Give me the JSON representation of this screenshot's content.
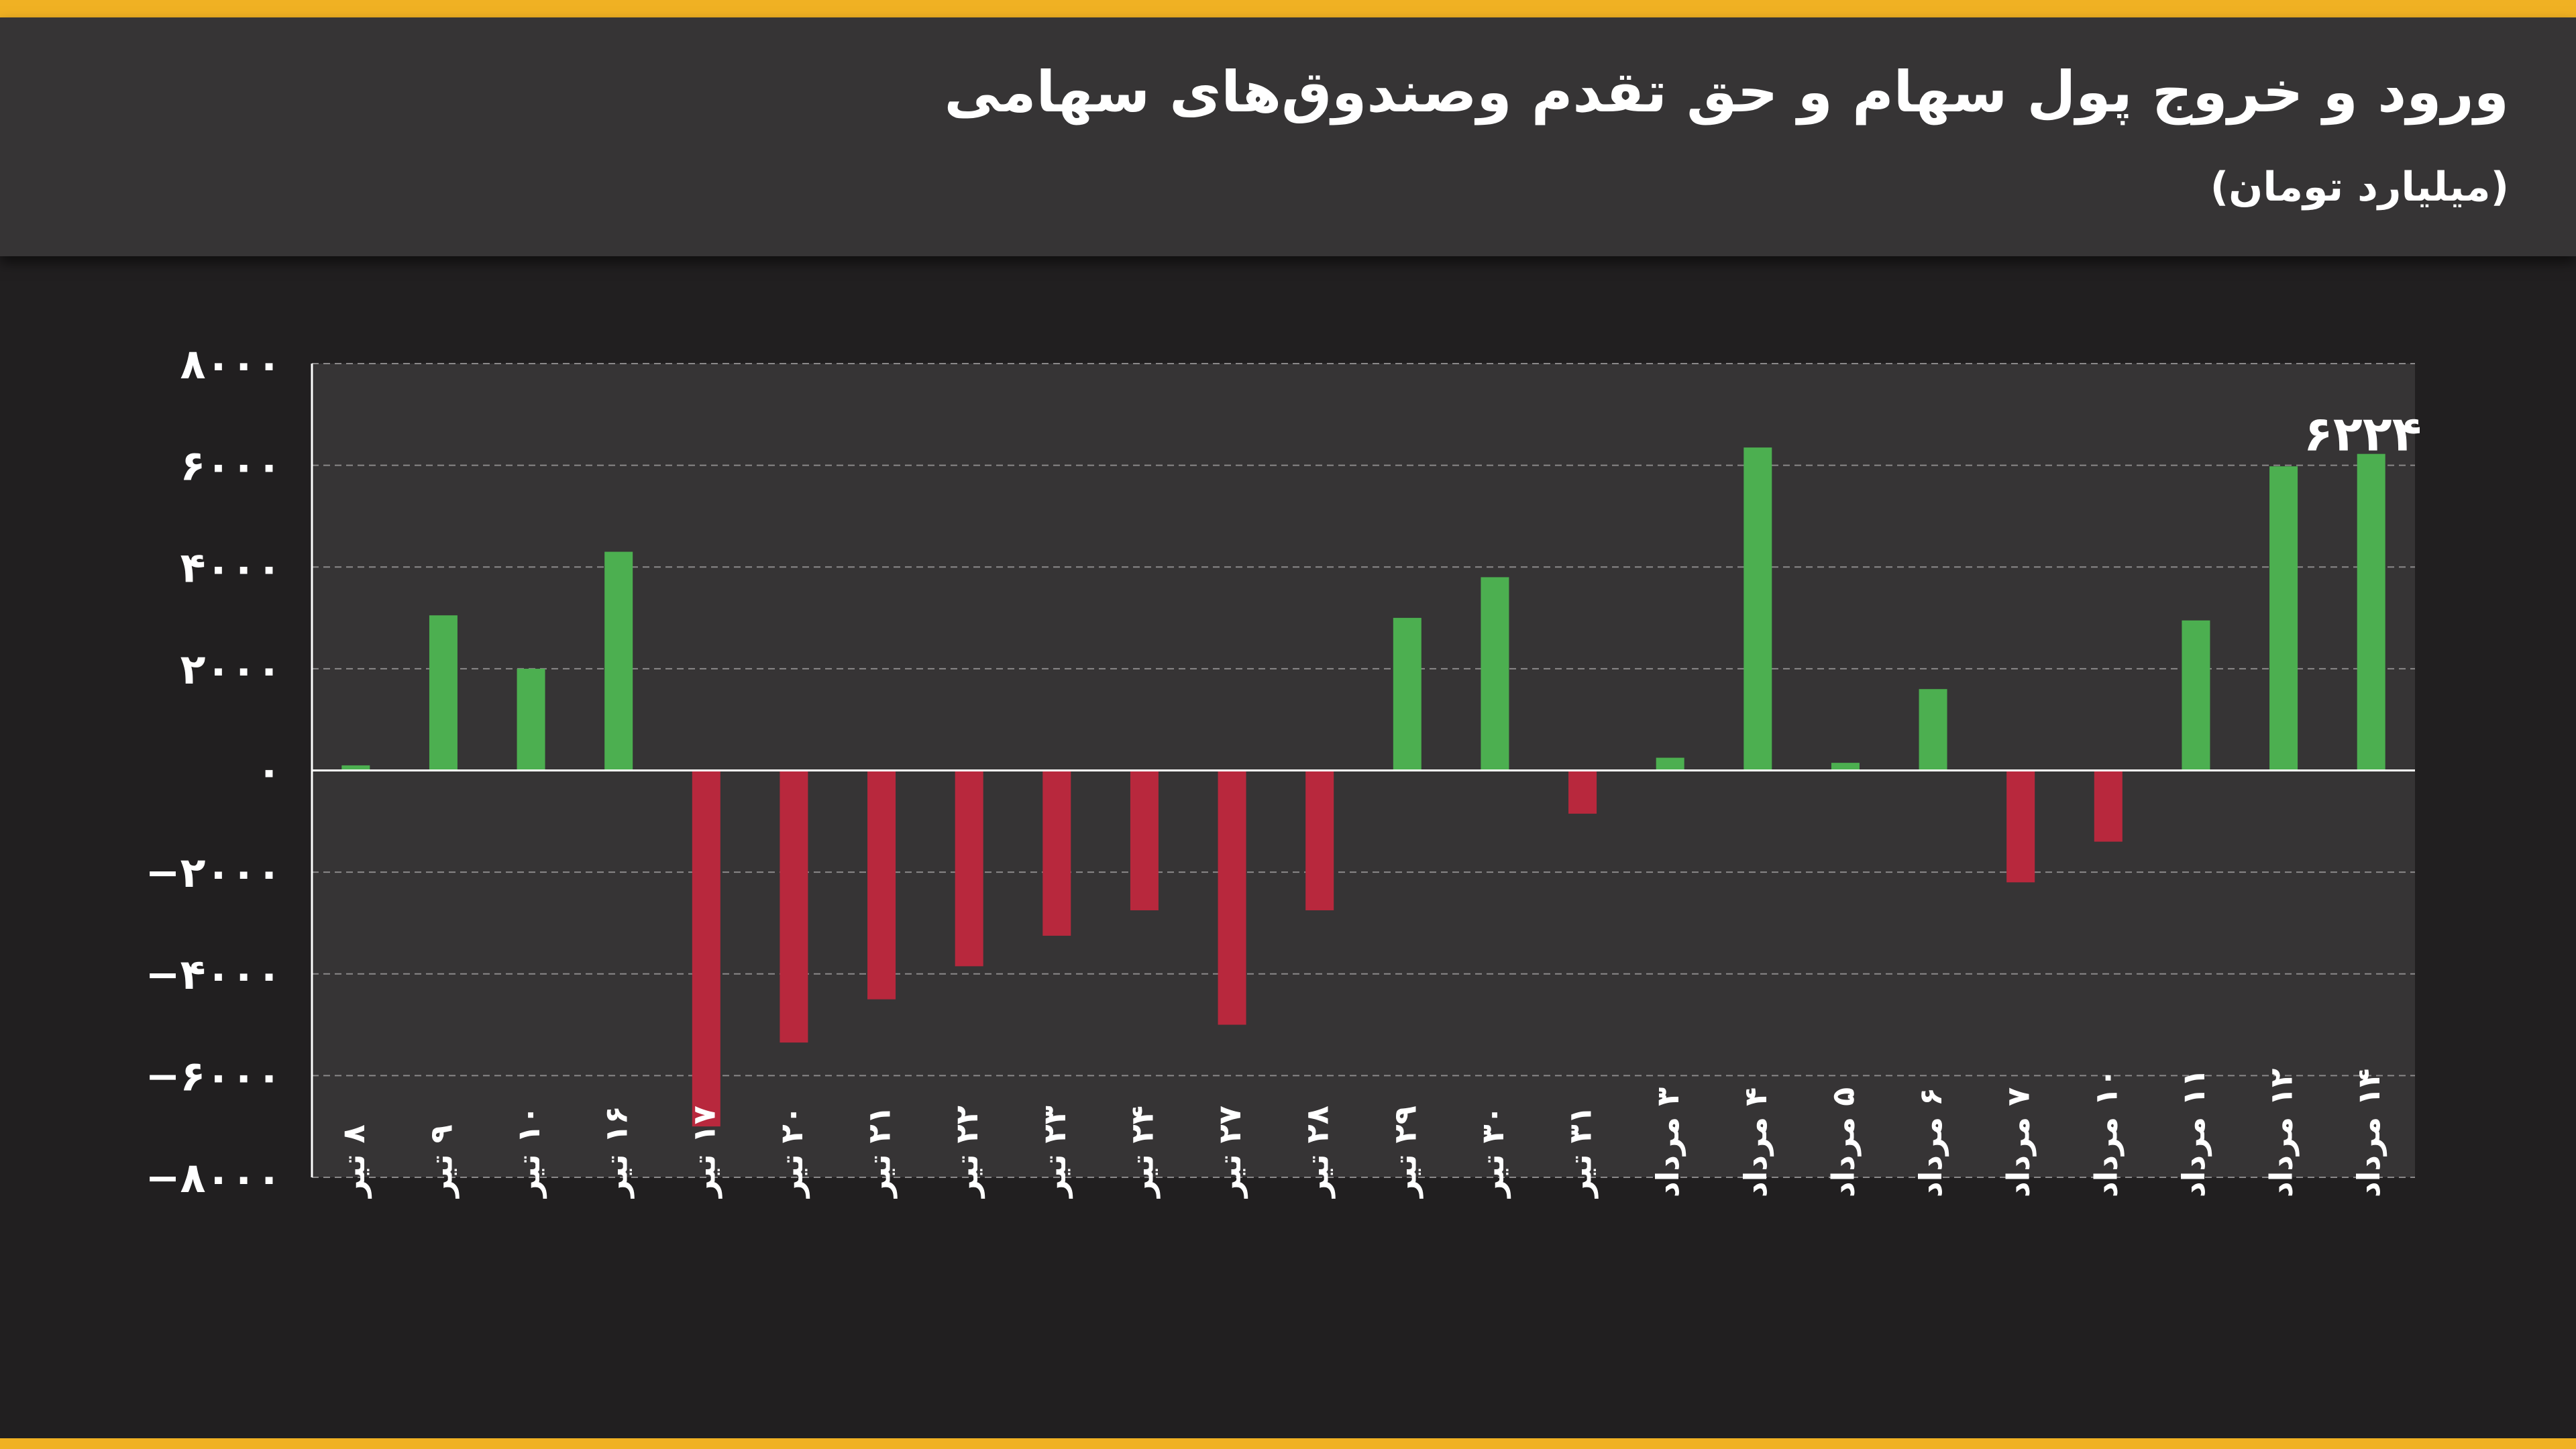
{
  "header": {
    "title": "ورود و خروج پول سهام و حق تقدم وصندوق‌های سهامی",
    "subtitle": "(میلیارد تومان)"
  },
  "colors": {
    "accent": "#f0b123",
    "positive": "#4caf50",
    "negative": "#b8283d",
    "plot_bg": "#363435",
    "page_bg": "#211f20"
  },
  "chart_data": {
    "type": "bar",
    "title": "ورود و خروج پول سهام و حق تقدم وصندوق‌های سهامی",
    "ylabel": "",
    "xlabel": "",
    "ylim": [
      -8000,
      8000
    ],
    "yticks": [
      8000,
      6000,
      4000,
      2000,
      0,
      -2000,
      -4000,
      -6000,
      -8000
    ],
    "ytick_labels": [
      "۸۰۰۰",
      "۶۰۰۰",
      "۴۰۰۰",
      "۲۰۰۰",
      "۰",
      "−۲۰۰۰",
      "−۴۰۰۰",
      "−۶۰۰۰",
      "−۸۰۰۰"
    ],
    "grid": true,
    "categories": [
      "۸ تیر",
      "۹ تیر",
      "۱۰ تیر",
      "۱۶ تیر",
      "۱۷ تیر",
      "۲۰ تیر",
      "۲۱ تیر",
      "۲۲ تیر",
      "۲۳ تیر",
      "۲۴ تیر",
      "۲۷ تیر",
      "۲۸ تیر",
      "۲۹ تیر",
      "۳۰ تیر",
      "۳۱ تیر",
      "۳ مرداد",
      "۴ مرداد",
      "۵ مرداد",
      "۶ مرداد",
      "۷ مرداد",
      "۱۰ مرداد",
      "۱۱ مرداد",
      "۱۲ مرداد",
      "۱۴ مرداد"
    ],
    "values": [
      100,
      3050,
      2000,
      4300,
      -7000,
      -5350,
      -4500,
      -3850,
      -3250,
      -2750,
      -5000,
      -2750,
      3000,
      3800,
      -850,
      250,
      6350,
      150,
      1600,
      -2200,
      -1400,
      2950,
      5980,
      6224
    ],
    "annotations": [
      {
        "index": 23,
        "text": "۶۲۲۴"
      }
    ]
  }
}
